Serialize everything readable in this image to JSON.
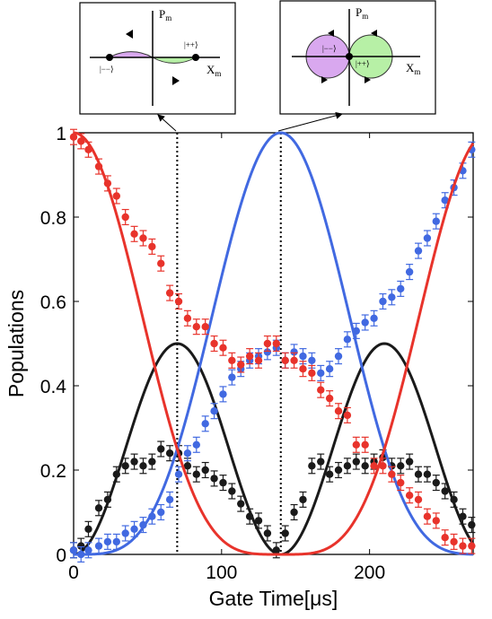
{
  "chart_data": {
    "type": "scatter",
    "xlabel": "Gate Time[μs]",
    "ylabel": "Populations",
    "xlim": [
      0,
      270
    ],
    "ylim": [
      0,
      1
    ],
    "xticks": [
      "0",
      "100",
      "200"
    ],
    "yticks": [
      "0",
      "0.2",
      "0.4",
      "0.6",
      "0.8",
      "1"
    ],
    "grid": false,
    "colors": {
      "red": "#e8332b",
      "blue": "#4169e1",
      "black": "#1a1a1a"
    },
    "vlines": [
      70,
      140
    ],
    "series": [
      {
        "color": "red",
        "fit": "1 - 0.5*(1 - cos(2*pi*t/280)) - 0.125*(1 - cos(4*pi*t/280))",
        "x": [
          0,
          5,
          10,
          17,
          23,
          29,
          35,
          41,
          47,
          53,
          59,
          65,
          71,
          77,
          83,
          89,
          95,
          101,
          107,
          113,
          119,
          125,
          131,
          137,
          143,
          149,
          155,
          161,
          167,
          173,
          179,
          185,
          191,
          197,
          203,
          209,
          215,
          221,
          227,
          233,
          239,
          245,
          251,
          257,
          263,
          269
        ],
        "y": [
          0.99,
          0.98,
          0.96,
          0.92,
          0.88,
          0.85,
          0.8,
          0.76,
          0.75,
          0.73,
          0.69,
          0.62,
          0.6,
          0.56,
          0.54,
          0.54,
          0.5,
          0.49,
          0.46,
          0.45,
          0.47,
          0.46,
          0.5,
          0.5,
          0.46,
          0.46,
          0.44,
          0.43,
          0.39,
          0.37,
          0.34,
          0.33,
          0.26,
          0.26,
          0.21,
          0.21,
          0.19,
          0.17,
          0.14,
          0.13,
          0.09,
          0.08,
          0.04,
          0.03,
          0.02,
          0.02
        ]
      },
      {
        "color": "blue",
        "fit": "0.5*(1 - cos(2*pi*t/280)) - 0.125*(1 - cos(4*pi*t/280))",
        "x": [
          0,
          5,
          10,
          17,
          23,
          29,
          35,
          41,
          47,
          53,
          59,
          65,
          71,
          77,
          83,
          89,
          95,
          101,
          107,
          113,
          119,
          125,
          131,
          137,
          143,
          149,
          155,
          161,
          167,
          173,
          179,
          185,
          191,
          197,
          203,
          209,
          215,
          221,
          227,
          233,
          239,
          245,
          251,
          257,
          263,
          269
        ],
        "y": [
          0.01,
          0.0,
          0.01,
          0.02,
          0.03,
          0.03,
          0.05,
          0.06,
          0.07,
          0.09,
          0.1,
          0.13,
          0.19,
          0.24,
          0.26,
          0.31,
          0.34,
          0.38,
          0.42,
          0.44,
          0.46,
          0.47,
          0.48,
          0.49,
          0.46,
          0.48,
          0.47,
          0.46,
          0.43,
          0.44,
          0.47,
          0.51,
          0.53,
          0.55,
          0.56,
          0.6,
          0.61,
          0.63,
          0.67,
          0.72,
          0.75,
          0.79,
          0.84,
          0.87,
          0.91,
          0.96
        ]
      },
      {
        "color": "black",
        "fit": "0.25*(1 - cos(4*pi*t/280))",
        "x": [
          0,
          5,
          10,
          17,
          23,
          29,
          35,
          41,
          47,
          53,
          59,
          65,
          71,
          77,
          83,
          89,
          95,
          101,
          107,
          113,
          119,
          125,
          131,
          137,
          143,
          149,
          155,
          161,
          167,
          173,
          179,
          185,
          191,
          197,
          203,
          209,
          215,
          221,
          227,
          233,
          239,
          245,
          251,
          257,
          263,
          269
        ],
        "y": [
          0.01,
          0.02,
          0.06,
          0.11,
          0.13,
          0.19,
          0.21,
          0.22,
          0.21,
          0.22,
          0.25,
          0.24,
          0.24,
          0.21,
          0.19,
          0.2,
          0.18,
          0.17,
          0.15,
          0.12,
          0.09,
          0.08,
          0.05,
          0.01,
          0.05,
          0.1,
          0.13,
          0.21,
          0.22,
          0.19,
          0.2,
          0.21,
          0.22,
          0.21,
          0.22,
          0.23,
          0.21,
          0.21,
          0.22,
          0.19,
          0.19,
          0.17,
          0.15,
          0.13,
          0.09,
          0.07
        ]
      }
    ]
  },
  "insets": [
    {
      "y_axis_label": "P",
      "y_axis_sub": "m",
      "x_axis_label": "X",
      "x_axis_sub": "m",
      "state_left": "|−−⟩",
      "state_right": "|++⟩"
    },
    {
      "y_axis_label": "P",
      "y_axis_sub": "m",
      "x_axis_label": "X",
      "x_axis_sub": "m",
      "state_left": "|−−⟩",
      "state_right": "|++⟩"
    }
  ]
}
